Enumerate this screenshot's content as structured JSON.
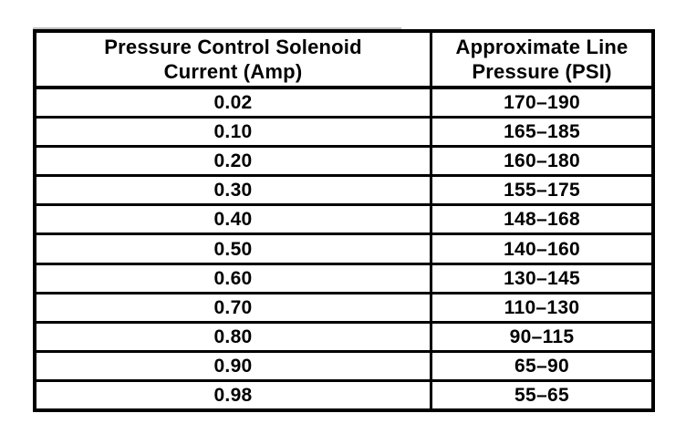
{
  "table": {
    "header": {
      "col1_line1": "Pressure Control Solenoid",
      "col1_line2": "Current (Amp)",
      "col2_line1": "Approximate Line",
      "col2_line2": "Pressure (PSI)"
    },
    "rows": [
      {
        "current": "0.02",
        "pressure": "170–190"
      },
      {
        "current": "0.10",
        "pressure": "165–185"
      },
      {
        "current": "0.20",
        "pressure": "160–180"
      },
      {
        "current": "0.30",
        "pressure": "155–175"
      },
      {
        "current": "0.40",
        "pressure": "148–168"
      },
      {
        "current": "0.50",
        "pressure": "140–160"
      },
      {
        "current": "0.60",
        "pressure": "130–145"
      },
      {
        "current": "0.70",
        "pressure": "110–130"
      },
      {
        "current": "0.80",
        "pressure": "90–115"
      },
      {
        "current": "0.90",
        "pressure": "65–90"
      },
      {
        "current": "0.98",
        "pressure": "55–65"
      }
    ]
  },
  "colors": {
    "ink": "#000000",
    "paper": "#ffffff"
  },
  "chart_data": {
    "type": "table",
    "title": "Pressure Control Solenoid Current vs Approximate Line Pressure",
    "columns": [
      "Pressure Control Solenoid Current (Amp)",
      "Approximate Line Pressure (PSI)"
    ],
    "x": [
      0.02,
      0.1,
      0.2,
      0.3,
      0.4,
      0.5,
      0.6,
      0.7,
      0.8,
      0.9,
      0.98
    ],
    "pressure_ranges": [
      [
        170,
        190
      ],
      [
        165,
        185
      ],
      [
        160,
        180
      ],
      [
        155,
        175
      ],
      [
        148,
        168
      ],
      [
        140,
        160
      ],
      [
        130,
        145
      ],
      [
        110,
        130
      ],
      [
        90,
        115
      ],
      [
        65,
        90
      ],
      [
        55,
        65
      ]
    ]
  }
}
